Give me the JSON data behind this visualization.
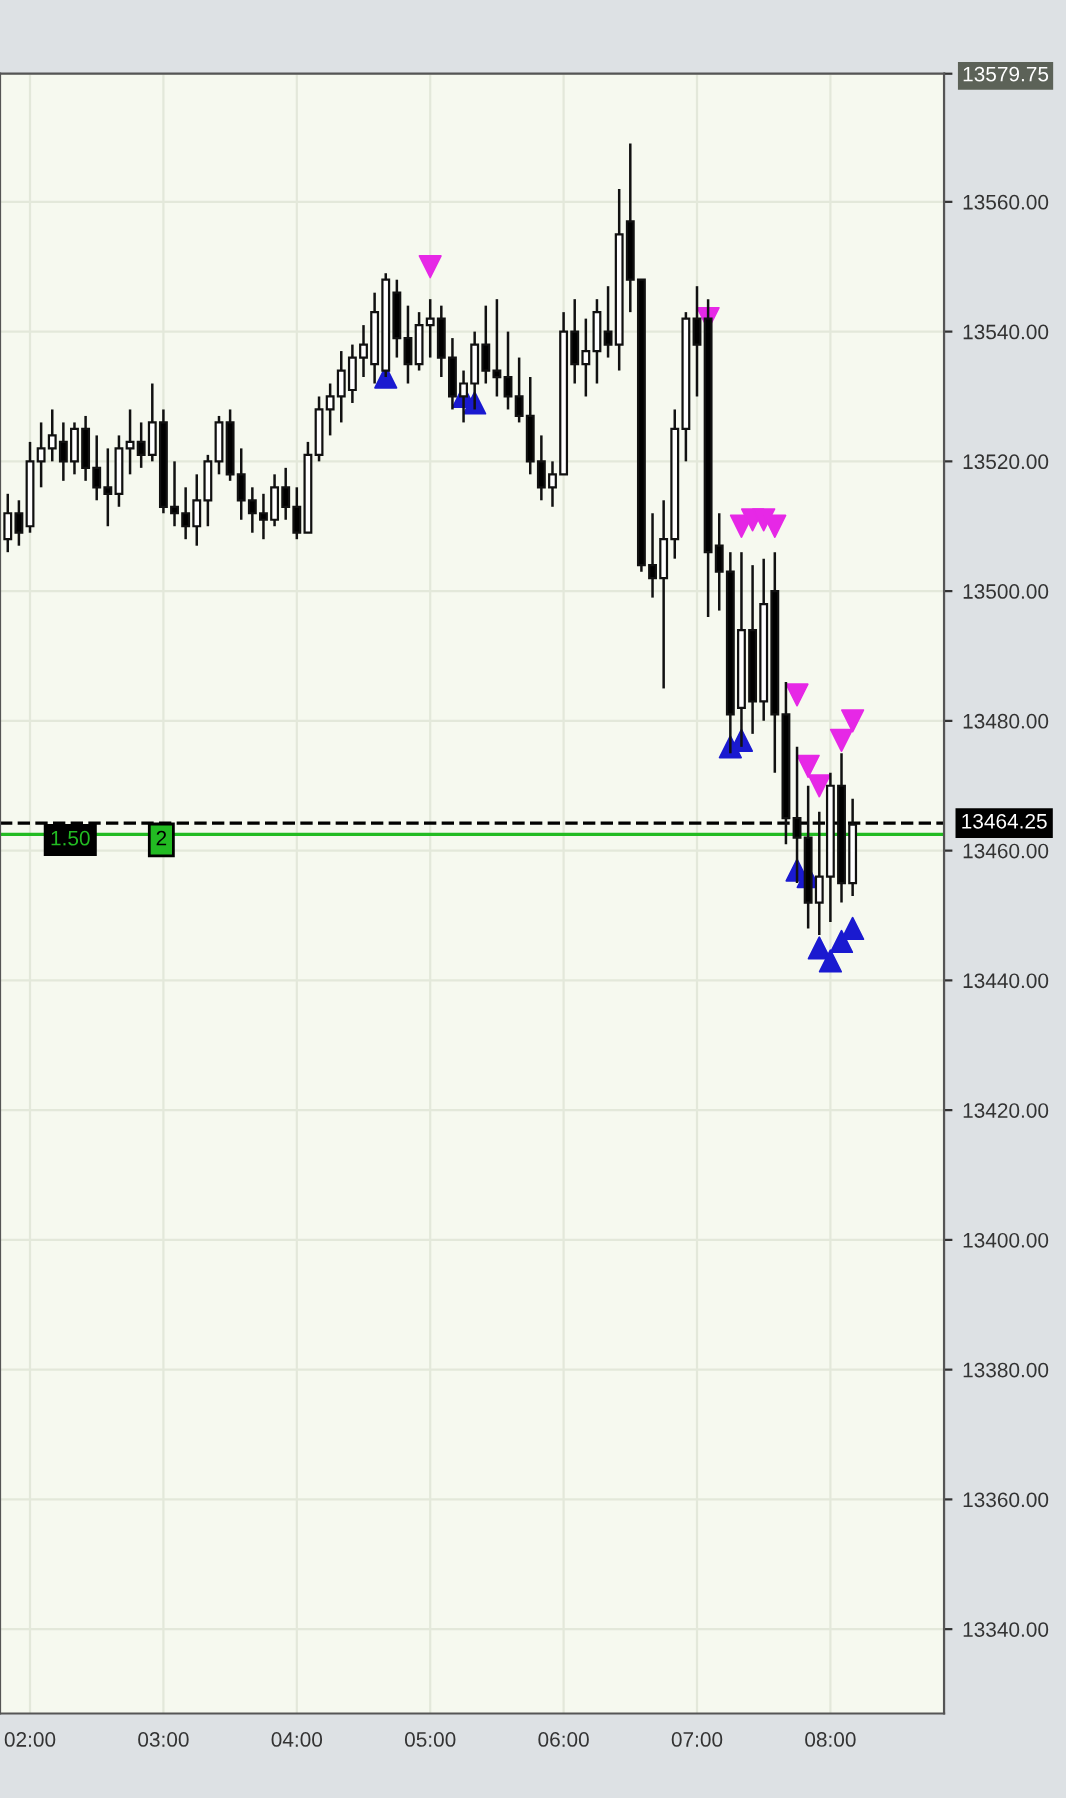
{
  "chart_data": {
    "type": "candlestick",
    "x": [
      1.8333,
      1.9167,
      2.0,
      2.0833,
      2.1667,
      2.25,
      2.3333,
      2.4167,
      2.5,
      2.5833,
      2.6667,
      2.75,
      2.8333,
      2.9167,
      3.0,
      3.0833,
      3.1667,
      3.25,
      3.3333,
      3.4167,
      3.5,
      3.5833,
      3.6667,
      3.75,
      3.8333,
      3.9167,
      4.0,
      4.0833,
      4.1667,
      4.25,
      4.3333,
      4.4167,
      4.5,
      4.5833,
      4.6667,
      4.75,
      4.8333,
      4.9167,
      5.0,
      5.0833,
      5.1667,
      5.25,
      5.3333,
      5.4167,
      5.5,
      5.5833,
      5.6667,
      5.75,
      5.8333,
      5.9167,
      6.0,
      6.0833,
      6.1667,
      6.25,
      6.3333,
      6.4167,
      6.5,
      6.5833,
      6.6667,
      6.75,
      6.8333,
      6.9167,
      7.0,
      7.0833,
      7.1667,
      7.25,
      7.3333,
      7.4167,
      7.5,
      7.5833,
      7.6667,
      7.75,
      7.8333,
      7.9167,
      8.0,
      8.0833,
      8.1667
    ],
    "ohlc": [
      [
        13508,
        13515,
        13506,
        13512
      ],
      [
        13512,
        13514,
        13507,
        13509
      ],
      [
        13510,
        13523,
        13509,
        13520
      ],
      [
        13520,
        13526,
        13516,
        13522
      ],
      [
        13522,
        13528,
        13520,
        13524
      ],
      [
        13523,
        13526,
        13517,
        13520
      ],
      [
        13520,
        13526,
        13518,
        13525
      ],
      [
        13525,
        13527,
        13517,
        13519
      ],
      [
        13519,
        13524,
        13514,
        13516
      ],
      [
        13516,
        13522,
        13510,
        13515
      ],
      [
        13515,
        13524,
        13513,
        13522
      ],
      [
        13522,
        13528,
        13518,
        13523
      ],
      [
        13523,
        13526,
        13519,
        13521
      ],
      [
        13521,
        13532,
        13520,
        13526
      ],
      [
        13526,
        13528,
        13512,
        13513
      ],
      [
        13513,
        13520,
        13510,
        13512
      ],
      [
        13512,
        13516,
        13508,
        13510
      ],
      [
        13510,
        13518,
        13507,
        13514
      ],
      [
        13514,
        13521,
        13510,
        13520
      ],
      [
        13520,
        13527,
        13518,
        13526
      ],
      [
        13526,
        13528,
        13517,
        13518
      ],
      [
        13518,
        13522,
        13511,
        13514
      ],
      [
        13514,
        13516,
        13509,
        13512
      ],
      [
        13512,
        13515,
        13508,
        13511
      ],
      [
        13511,
        13518,
        13510,
        13516
      ],
      [
        13516,
        13519,
        13511,
        13513
      ],
      [
        13513,
        13516,
        13508,
        13509
      ],
      [
        13509,
        13523,
        13509,
        13521
      ],
      [
        13521,
        13530,
        13520,
        13528
      ],
      [
        13528,
        13532,
        13524,
        13530
      ],
      [
        13530,
        13537,
        13526,
        13534
      ],
      [
        13531,
        13538,
        13529,
        13536
      ],
      [
        13536,
        13541,
        13533,
        13538
      ],
      [
        13535,
        13546,
        13532,
        13543
      ],
      [
        13534,
        13549,
        13533,
        13548
      ],
      [
        13546,
        13548,
        13536,
        13539
      ],
      [
        13539,
        13544,
        13532,
        13535
      ],
      [
        13535,
        13543,
        13534,
        13541
      ],
      [
        13541,
        13545,
        13536,
        13542
      ],
      [
        13542,
        13544,
        13533,
        13536
      ],
      [
        13536,
        13539,
        13528,
        13530
      ],
      [
        13530,
        13534,
        13526,
        13532
      ],
      [
        13532,
        13540,
        13528,
        13538
      ],
      [
        13538,
        13544,
        13532,
        13534
      ],
      [
        13534,
        13545,
        13530,
        13533
      ],
      [
        13533,
        13540,
        13528,
        13530
      ],
      [
        13530,
        13536,
        13526,
        13527
      ],
      [
        13527,
        13533,
        13518,
        13520
      ],
      [
        13520,
        13524,
        13514,
        13516
      ],
      [
        13516,
        13520,
        13513,
        13518
      ],
      [
        13518,
        13543,
        13518,
        13540
      ],
      [
        13540,
        13545,
        13532,
        13535
      ],
      [
        13535,
        13542,
        13530,
        13537
      ],
      [
        13537,
        13545,
        13532,
        13543
      ],
      [
        13540,
        13547,
        13536,
        13538
      ],
      [
        13538,
        13562,
        13534,
        13555
      ],
      [
        13557,
        13569,
        13543,
        13548
      ],
      [
        13548,
        13548,
        13503,
        13504
      ],
      [
        13504,
        13512,
        13499,
        13502
      ],
      [
        13502,
        13514,
        13485,
        13508
      ],
      [
        13508,
        13528,
        13505,
        13525
      ],
      [
        13525,
        13543,
        13520,
        13542
      ],
      [
        13542,
        13547,
        13530,
        13538
      ],
      [
        13542,
        13545,
        13496,
        13506
      ],
      [
        13507,
        13512,
        13497,
        13503
      ],
      [
        13503,
        13506,
        13475,
        13481
      ],
      [
        13482,
        13506,
        13476,
        13494
      ],
      [
        13494,
        13504,
        13478,
        13483
      ],
      [
        13483,
        13505,
        13480,
        13498
      ],
      [
        13500,
        13506,
        13472,
        13481
      ],
      [
        13481,
        13486,
        13461,
        13465
      ],
      [
        13465,
        13476,
        13455,
        13462
      ],
      [
        13462,
        13470,
        13448,
        13452
      ],
      [
        13452,
        13466,
        13447,
        13456
      ],
      [
        13456,
        13472,
        13449,
        13470
      ],
      [
        13470,
        13475,
        13452,
        13455
      ],
      [
        13455,
        13468,
        13453,
        13464
      ]
    ],
    "series": [
      {
        "type": "scatter",
        "marker": "triangle",
        "color": "#1a1ad0",
        "x": [
          4.6667,
          5.25,
          5.3333,
          7.25,
          7.3333,
          7.75,
          7.8333,
          7.9167,
          8.0,
          8.0833,
          8.1667
        ],
        "values": [
          13533,
          13530,
          13529,
          13476,
          13477,
          13457,
          13456,
          13445,
          13443,
          13446,
          13448
        ]
      },
      {
        "type": "scatter",
        "marker": "triangle_down",
        "color": "#e628e6",
        "x": [
          5.0,
          7.0833,
          7.3333,
          7.4167,
          7.5,
          7.5833,
          7.75,
          7.8333,
          7.9167,
          8.0833,
          8.1667
        ],
        "values": [
          13550,
          13542,
          13510,
          13511,
          13511,
          13510,
          13484,
          13473,
          13470,
          13477,
          13480
        ]
      }
    ],
    "xlim": [
      1.775,
      8.852
    ],
    "xticks": [
      {
        "value": 2,
        "label": "02:00"
      },
      {
        "value": 3,
        "label": "03:00"
      },
      {
        "value": 4,
        "label": "04:00"
      },
      {
        "value": 5,
        "label": "05:00"
      },
      {
        "value": 6,
        "label": "06:00"
      },
      {
        "value": 7,
        "label": "07:00"
      },
      {
        "value": 8,
        "label": "08:00"
      }
    ],
    "ylim": [
      13327,
      13579.75
    ],
    "yticks": [
      {
        "value": 13340,
        "label": "13340.00"
      },
      {
        "value": 13360,
        "label": "13360.00"
      },
      {
        "value": 13380,
        "label": "13380.00"
      },
      {
        "value": 13400,
        "label": "13400.00"
      },
      {
        "value": 13420,
        "label": "13420.00"
      },
      {
        "value": 13440,
        "label": "13440.00"
      },
      {
        "value": 13460,
        "label": "13460.00"
      },
      {
        "value": 13480,
        "label": "13480.00"
      },
      {
        "value": 13500,
        "label": "13500.00"
      },
      {
        "value": 13520,
        "label": "13520.00"
      },
      {
        "value": 13540,
        "label": "13540.00"
      },
      {
        "value": 13560,
        "label": "13560.00"
      },
      {
        "value": 13579.75,
        "label": "13579.75"
      }
    ],
    "ref_lines": [
      {
        "axis": "y",
        "value": 13464.25,
        "label": "13464.25",
        "color": "#000000",
        "line_style": "dashed"
      },
      {
        "axis": "y",
        "value": 13462.5,
        "color": "#22bb22",
        "line_style": "solid"
      }
    ],
    "annotations": [
      "1.50",
      "2"
    ],
    "grid": true
  }
}
